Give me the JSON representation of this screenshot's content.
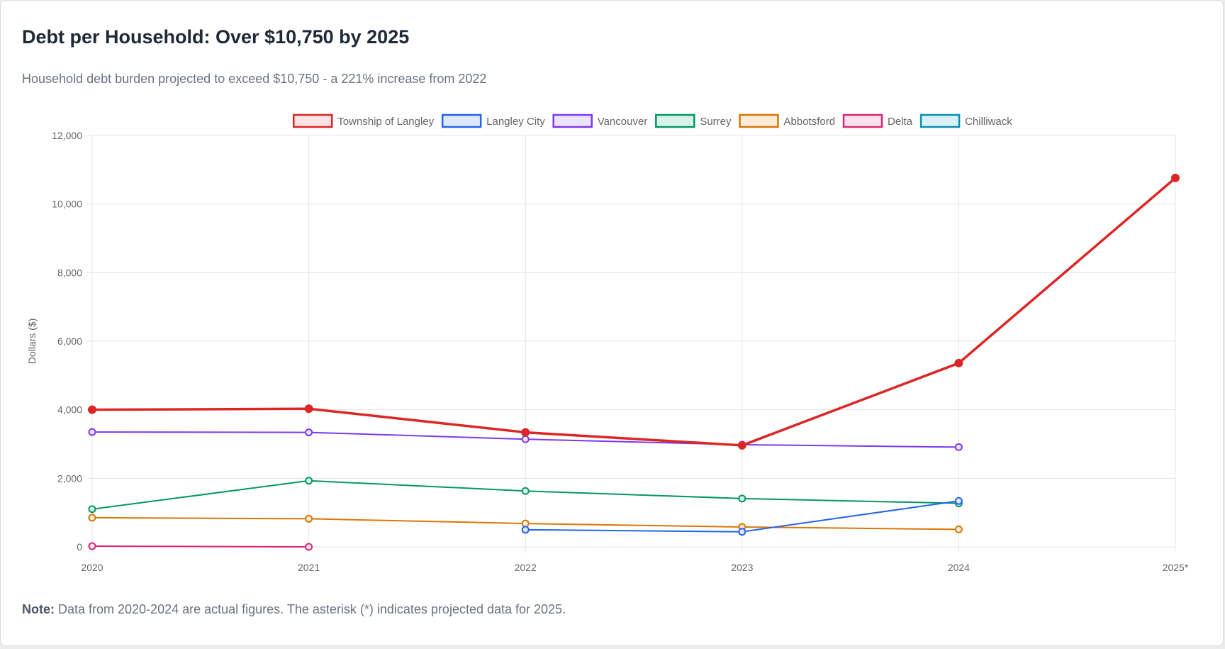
{
  "card": {
    "title": "Debt per Household: Over $10,750 by 2025",
    "subtitle": "Household debt burden projected to exceed $10,750 - a 221% increase from 2022",
    "note_label": "Note:",
    "note_text": " Data from 2020-2024 are actual figures. The asterisk (*) indicates projected data for 2025."
  },
  "chart_data": {
    "type": "line",
    "title": "Debt per Household: Over $10,750 by 2025",
    "xlabel": "",
    "ylabel": "Dollars ($)",
    "ylim": [
      0,
      12000
    ],
    "yticks": [
      0,
      2000,
      4000,
      6000,
      8000,
      10000,
      12000
    ],
    "ytick_labels": [
      "0",
      "2,000",
      "4,000",
      "6,000",
      "8,000",
      "10,000",
      "12,000"
    ],
    "categories": [
      "2020",
      "2021",
      "2022",
      "2023",
      "2024",
      "2025*"
    ],
    "legend_position": "top-center",
    "grid": true,
    "series": [
      {
        "name": "Township of Langley",
        "color": "#dc2626",
        "fill": "#fde3e3",
        "values": [
          4000,
          4030,
          3340,
          2960,
          5360,
          10760
        ]
      },
      {
        "name": "Langley City",
        "color": "#2563eb",
        "fill": "#dde8fd",
        "values": [
          null,
          null,
          500,
          440,
          1340,
          null
        ]
      },
      {
        "name": "Vancouver",
        "color": "#7c3aed",
        "fill": "#ece3fd",
        "values": [
          3350,
          3340,
          3140,
          2980,
          2910,
          null
        ]
      },
      {
        "name": "Surrey",
        "color": "#059669",
        "fill": "#d9f2e9",
        "values": [
          1100,
          1930,
          1630,
          1410,
          1270,
          null
        ]
      },
      {
        "name": "Abbotsford",
        "color": "#d97706",
        "fill": "#fcebd6",
        "values": [
          850,
          820,
          680,
          580,
          510,
          null
        ]
      },
      {
        "name": "Delta",
        "color": "#db2777",
        "fill": "#fce1ee",
        "values": [
          20,
          0,
          null,
          null,
          null,
          null
        ]
      },
      {
        "name": "Chilliwack",
        "color": "#0891b2",
        "fill": "#d9f0f6",
        "values": [
          null,
          null,
          null,
          null,
          null,
          null
        ]
      }
    ]
  }
}
